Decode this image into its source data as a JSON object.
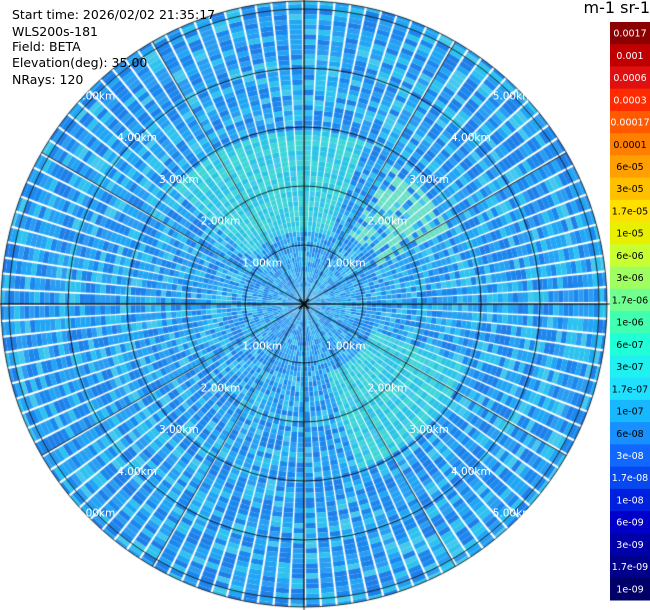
{
  "info": {
    "start_time": "Start time: 2026/02/02 21:35:17",
    "instrument": "WLS200s-181",
    "field": "Field: BETA",
    "elevation": "Elevation(deg): 35.00",
    "nrays": "NRays: 120"
  },
  "colorbar": {
    "unit_label": "m-1 sr-1",
    "labels": [
      "0.0017",
      "0.001",
      "0.0006",
      "0.0003",
      "0.00017",
      "0.0001",
      "6e-05",
      "3e-05",
      "1.7e-05",
      "1e-05",
      "6e-06",
      "3e-06",
      "1.7e-06",
      "1e-06",
      "6e-07",
      "3e-07",
      "1.7e-07",
      "1e-07",
      "6e-08",
      "3e-08",
      "1.7e-08",
      "1e-08",
      "6e-09",
      "3e-09",
      "1.7e-09",
      "1e-09"
    ],
    "colors": [
      "#8b0000",
      "#c00000",
      "#e01010",
      "#ff2a00",
      "#ff5a00",
      "#ff8000",
      "#ffa000",
      "#ffc000",
      "#ffe000",
      "#e8f000",
      "#c8ff30",
      "#a0ff60",
      "#70ff90",
      "#40ffb0",
      "#20ffd8",
      "#20f0f0",
      "#20e0ff",
      "#18b8ff",
      "#1890ff",
      "#1068ff",
      "#0848f0",
      "#0020e0",
      "#0000c8",
      "#0000a8",
      "#00008a",
      "#000068"
    ]
  },
  "range_labels": [
    "1.00km",
    "2.00km",
    "3.00km",
    "4.00km",
    "5.00km"
  ],
  "map": {
    "rays": 120
  }
}
